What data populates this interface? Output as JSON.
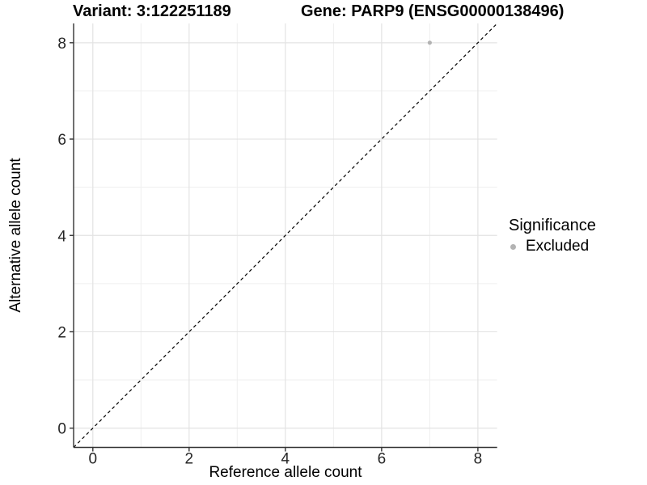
{
  "figure": {
    "title_left": "Variant: 3:122251189",
    "title_right": "Gene: PARP9 (ENSG00000138496)"
  },
  "chart_data": {
    "type": "scatter",
    "xlabel": "Reference allele count",
    "ylabel": "Alternative allele count",
    "xlim": [
      -0.4,
      8.4
    ],
    "ylim": [
      -0.4,
      8.4
    ],
    "x_major_ticks": [
      0,
      2,
      4,
      6,
      8
    ],
    "y_major_ticks": [
      0,
      2,
      4,
      6,
      8
    ],
    "x_minor_ticks": [
      1,
      3,
      5,
      7
    ],
    "y_minor_ticks": [
      1,
      3,
      5,
      7
    ],
    "grid": "on",
    "series": [
      {
        "name": "Excluded",
        "color": "#b3b3b3",
        "points": [
          {
            "x": 7,
            "y": 8
          }
        ]
      }
    ],
    "reference_line": {
      "kind": "identity",
      "from": [
        -0.4,
        -0.4
      ],
      "to": [
        8.4,
        8.4
      ],
      "style": "dashed",
      "color": "#000000"
    },
    "legend": {
      "position": "right",
      "title": "Significance",
      "entries": [
        {
          "label": "Excluded",
          "color": "#b3b3b3"
        }
      ]
    }
  },
  "style": {
    "background": "#ffffff",
    "major_grid_color": "#e3e3e3",
    "minor_grid_color": "#efefef",
    "axis_line_color": "#333333",
    "tick_mark_color": "#333333",
    "tick_label_color": "#262626"
  }
}
